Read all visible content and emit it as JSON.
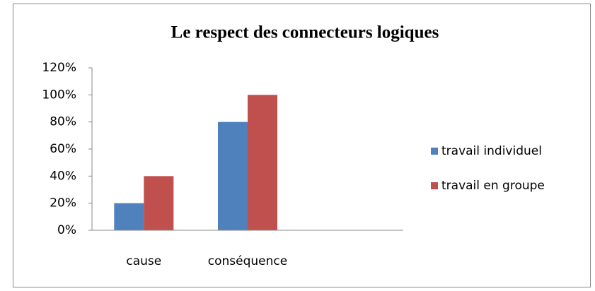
{
  "chart_data": {
    "type": "bar",
    "title": "Le respect des connecteurs logiques",
    "categories": [
      "cause",
      "conséquence",
      null
    ],
    "series": [
      {
        "name": "travail individuel",
        "color": "#4f81bd",
        "values": [
          20,
          80,
          null
        ]
      },
      {
        "name": "travail en groupe",
        "color": "#c0504d",
        "values": [
          40,
          100,
          null
        ]
      }
    ],
    "ylim": [
      0,
      120
    ],
    "yticks": [
      {
        "value": 0,
        "label": "0%"
      },
      {
        "value": 20,
        "label": "20%"
      },
      {
        "value": 40,
        "label": "40%"
      },
      {
        "value": 60,
        "label": "60%"
      },
      {
        "value": 80,
        "label": "80%"
      },
      {
        "value": 100,
        "label": "100%"
      },
      {
        "value": 120,
        "label": "120%"
      }
    ],
    "legend": "right",
    "grid": false
  }
}
